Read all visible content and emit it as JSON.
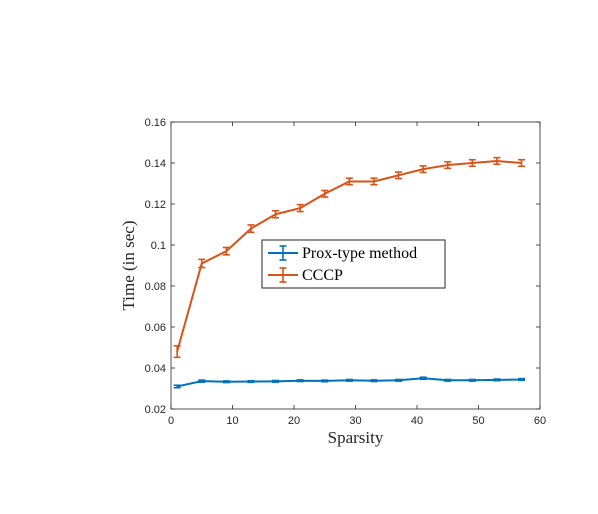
{
  "chart_data": {
    "type": "line",
    "xlabel": "Sparsity",
    "ylabel": "Time (in sec)",
    "xlim": [
      0,
      60
    ],
    "ylim": [
      0.02,
      0.16
    ],
    "xticks": [
      0,
      10,
      20,
      30,
      40,
      50,
      60
    ],
    "xtick_labels": [
      "0",
      "10",
      "20",
      "30",
      "40",
      "50",
      "60"
    ],
    "yticks": [
      0.02,
      0.04,
      0.06,
      0.08,
      0.1,
      0.12,
      0.14,
      0.16
    ],
    "ytick_labels": [
      "0.02",
      "0.04",
      "0.06",
      "0.08",
      "0.1",
      "0.12",
      "0.14",
      "0.16"
    ],
    "grid": false,
    "legend_position": "center",
    "error_bars": true,
    "x": [
      1,
      5,
      9,
      13,
      17,
      21,
      25,
      29,
      33,
      37,
      41,
      45,
      49,
      53,
      57
    ],
    "series": [
      {
        "name": "Prox-type method",
        "color": "#0072BD",
        "values": [
          0.031,
          0.0336,
          0.0333,
          0.0334,
          0.0335,
          0.0338,
          0.0337,
          0.034,
          0.0338,
          0.034,
          0.035,
          0.034,
          0.034,
          0.0342,
          0.0344
        ],
        "errors": [
          0.0006,
          0.0005,
          0.0004,
          0.0004,
          0.0004,
          0.0004,
          0.0004,
          0.0004,
          0.0004,
          0.0004,
          0.0005,
          0.0004,
          0.0004,
          0.0004,
          0.0004
        ]
      },
      {
        "name": "CCCP",
        "color": "#D95319",
        "values": [
          0.048,
          0.091,
          0.097,
          0.108,
          0.115,
          0.118,
          0.125,
          0.131,
          0.131,
          0.134,
          0.137,
          0.139,
          0.14,
          0.141,
          0.14
        ],
        "errors": [
          0.0028,
          0.002,
          0.0018,
          0.0018,
          0.0017,
          0.0017,
          0.0016,
          0.0016,
          0.0016,
          0.0016,
          0.0016,
          0.0016,
          0.0016,
          0.0016,
          0.0016
        ]
      }
    ]
  }
}
